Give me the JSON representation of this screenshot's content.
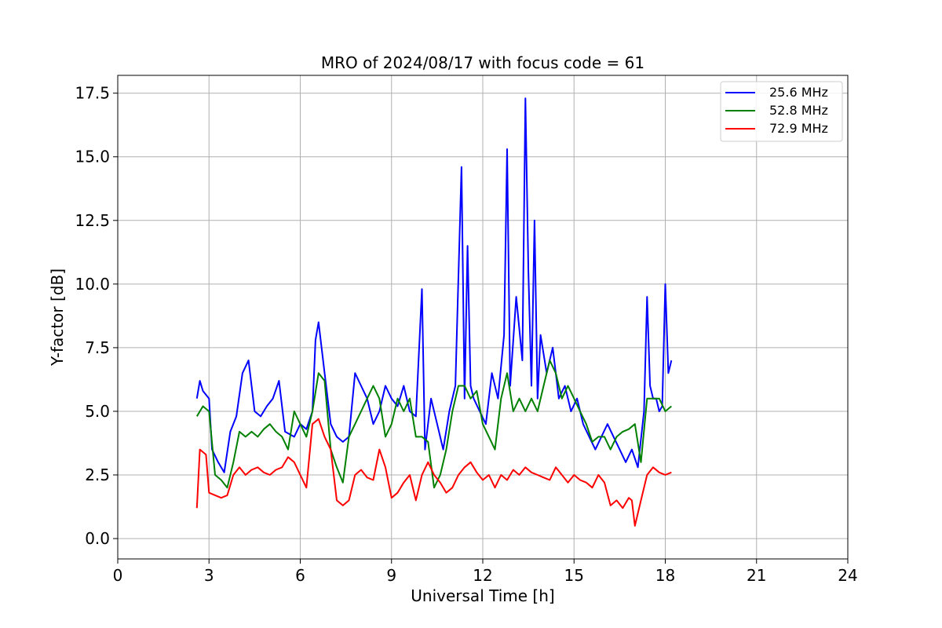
{
  "chart_data": {
    "type": "line",
    "title": "MRO of 2024/08/17 with focus code = 61",
    "xlabel": "Universal Time [h]",
    "ylabel": "Y-factor [dB]",
    "xlim": [
      0,
      24
    ],
    "ylim": [
      -0.8,
      18.2
    ],
    "xticks": [
      0,
      3,
      6,
      9,
      12,
      15,
      18,
      21,
      24
    ],
    "yticks": [
      0.0,
      2.5,
      5.0,
      7.5,
      10.0,
      12.5,
      15.0,
      17.5
    ],
    "xtick_labels": [
      "0",
      "3",
      "6",
      "9",
      "12",
      "15",
      "18",
      "21",
      "24"
    ],
    "ytick_labels": [
      "0.0",
      "2.5",
      "5.0",
      "7.5",
      "10.0",
      "12.5",
      "15.0",
      "17.5"
    ],
    "grid": true,
    "legend_position": "top-right",
    "series": [
      {
        "name": "25.6 MHz",
        "color": "#0000ff",
        "x": [
          2.6,
          2.7,
          2.8,
          3.0,
          3.1,
          3.3,
          3.5,
          3.7,
          3.9,
          4.1,
          4.3,
          4.5,
          4.7,
          4.9,
          5.1,
          5.3,
          5.5,
          5.8,
          6.0,
          6.2,
          6.4,
          6.5,
          6.6,
          6.8,
          7.0,
          7.2,
          7.4,
          7.6,
          7.8,
          8.0,
          8.2,
          8.4,
          8.6,
          8.8,
          9.0,
          9.2,
          9.4,
          9.6,
          9.8,
          10.0,
          10.1,
          10.3,
          10.5,
          10.7,
          10.9,
          11.1,
          11.3,
          11.4,
          11.5,
          11.6,
          11.7,
          11.9,
          12.1,
          12.3,
          12.5,
          12.7,
          12.8,
          12.9,
          13.1,
          13.3,
          13.4,
          13.5,
          13.6,
          13.7,
          13.8,
          13.9,
          14.1,
          14.3,
          14.5,
          14.7,
          14.9,
          15.1,
          15.3,
          15.5,
          15.7,
          15.9,
          16.1,
          16.3,
          16.5,
          16.7,
          16.9,
          17.1,
          17.3,
          17.4,
          17.5,
          17.6,
          17.7,
          17.8,
          17.9,
          18.0,
          18.1,
          18.2
        ],
        "y": [
          5.5,
          6.2,
          5.8,
          5.5,
          3.5,
          3.0,
          2.6,
          4.2,
          4.8,
          6.5,
          7.0,
          5.0,
          4.8,
          5.2,
          5.5,
          6.2,
          4.2,
          4.0,
          4.5,
          4.3,
          5.0,
          7.8,
          8.5,
          6.5,
          4.5,
          4.0,
          3.8,
          4.0,
          6.5,
          6.0,
          5.5,
          4.5,
          5.0,
          6.0,
          5.5,
          5.2,
          6.0,
          5.0,
          4.8,
          9.8,
          3.5,
          5.5,
          4.5,
          3.5,
          5.0,
          6.0,
          14.6,
          5.5,
          11.5,
          6.0,
          5.5,
          5.0,
          4.5,
          6.5,
          5.5,
          8.0,
          15.3,
          6.0,
          9.5,
          7.0,
          17.3,
          10.5,
          6.0,
          12.5,
          5.5,
          8.0,
          6.5,
          7.5,
          5.5,
          6.0,
          5.0,
          5.5,
          4.5,
          4.0,
          3.5,
          4.0,
          4.5,
          4.0,
          3.5,
          3.0,
          3.5,
          2.8,
          5.0,
          9.5,
          6.0,
          5.5,
          5.5,
          5.0,
          5.2,
          10.0,
          6.5,
          7.0
        ]
      },
      {
        "name": "52.8 MHz",
        "color": "#008000",
        "x": [
          2.6,
          2.8,
          3.0,
          3.2,
          3.4,
          3.6,
          3.8,
          4.0,
          4.2,
          4.4,
          4.6,
          4.8,
          5.0,
          5.2,
          5.4,
          5.6,
          5.8,
          6.0,
          6.2,
          6.4,
          6.6,
          6.8,
          7.0,
          7.2,
          7.4,
          7.6,
          7.8,
          8.0,
          8.2,
          8.4,
          8.6,
          8.8,
          9.0,
          9.2,
          9.4,
          9.6,
          9.8,
          10.0,
          10.2,
          10.4,
          10.6,
          10.8,
          11.0,
          11.2,
          11.4,
          11.6,
          11.8,
          12.0,
          12.2,
          12.4,
          12.6,
          12.8,
          13.0,
          13.2,
          13.4,
          13.6,
          13.8,
          14.0,
          14.2,
          14.4,
          14.6,
          14.8,
          15.0,
          15.2,
          15.4,
          15.6,
          15.8,
          16.0,
          16.2,
          16.4,
          16.6,
          16.8,
          17.0,
          17.2,
          17.4,
          17.6,
          17.8,
          18.0,
          18.2
        ],
        "y": [
          4.8,
          5.2,
          5.0,
          2.5,
          2.3,
          2.0,
          3.0,
          4.2,
          4.0,
          4.2,
          4.0,
          4.3,
          4.5,
          4.2,
          4.0,
          3.5,
          5.0,
          4.5,
          4.0,
          5.0,
          6.5,
          6.2,
          3.5,
          2.8,
          2.2,
          4.0,
          4.5,
          5.0,
          5.5,
          6.0,
          5.5,
          4.0,
          4.5,
          5.5,
          5.0,
          5.5,
          4.0,
          4.0,
          3.8,
          2.0,
          2.5,
          3.5,
          5.0,
          6.0,
          6.0,
          5.5,
          5.8,
          4.5,
          4.0,
          3.5,
          5.5,
          6.5,
          5.0,
          5.5,
          5.0,
          5.5,
          5.0,
          6.0,
          7.0,
          6.5,
          5.5,
          6.0,
          5.5,
          5.0,
          4.5,
          3.8,
          4.0,
          4.0,
          3.5,
          4.0,
          4.2,
          4.3,
          4.5,
          3.0,
          5.5,
          5.5,
          5.5,
          5.0,
          5.2
        ]
      },
      {
        "name": "72.9 MHz",
        "color": "#ff0000",
        "x": [
          2.6,
          2.7,
          2.9,
          3.0,
          3.2,
          3.4,
          3.6,
          3.8,
          4.0,
          4.2,
          4.4,
          4.6,
          4.8,
          5.0,
          5.2,
          5.4,
          5.6,
          5.8,
          6.0,
          6.2,
          6.4,
          6.6,
          6.8,
          7.0,
          7.2,
          7.4,
          7.6,
          7.8,
          8.0,
          8.2,
          8.4,
          8.6,
          8.8,
          9.0,
          9.2,
          9.4,
          9.6,
          9.8,
          10.0,
          10.2,
          10.4,
          10.6,
          10.8,
          11.0,
          11.2,
          11.4,
          11.6,
          11.8,
          12.0,
          12.2,
          12.4,
          12.6,
          12.8,
          13.0,
          13.2,
          13.4,
          13.6,
          13.8,
          14.0,
          14.2,
          14.4,
          14.6,
          14.8,
          15.0,
          15.2,
          15.4,
          15.6,
          15.8,
          16.0,
          16.2,
          16.4,
          16.6,
          16.8,
          16.9,
          17.0,
          17.2,
          17.4,
          17.6,
          17.8,
          18.0,
          18.2
        ],
        "y": [
          1.2,
          3.5,
          3.3,
          1.8,
          1.7,
          1.6,
          1.7,
          2.5,
          2.8,
          2.5,
          2.7,
          2.8,
          2.6,
          2.5,
          2.7,
          2.8,
          3.2,
          3.0,
          2.5,
          2.0,
          4.5,
          4.7,
          4.0,
          3.5,
          1.5,
          1.3,
          1.5,
          2.5,
          2.7,
          2.4,
          2.3,
          3.5,
          2.8,
          1.6,
          1.8,
          2.2,
          2.5,
          1.5,
          2.5,
          3.0,
          2.5,
          2.2,
          1.8,
          2.0,
          2.5,
          2.8,
          3.0,
          2.6,
          2.3,
          2.5,
          2.0,
          2.5,
          2.3,
          2.7,
          2.5,
          2.8,
          2.6,
          2.5,
          2.4,
          2.3,
          2.8,
          2.5,
          2.2,
          2.5,
          2.3,
          2.2,
          2.0,
          2.5,
          2.2,
          1.3,
          1.5,
          1.2,
          1.6,
          1.5,
          0.5,
          1.5,
          2.5,
          2.8,
          2.6,
          2.5,
          2.6
        ]
      }
    ]
  }
}
